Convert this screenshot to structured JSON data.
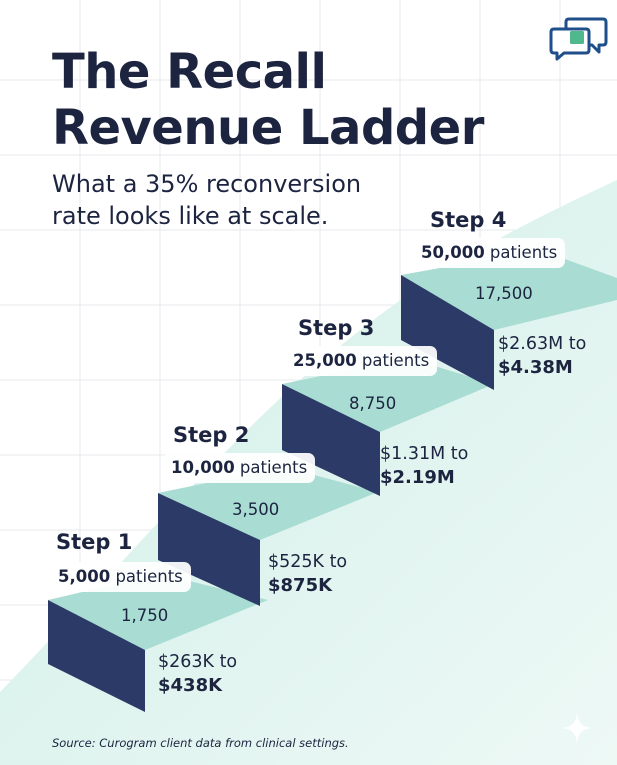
{
  "header": {
    "title_line1": "The Recall",
    "title_line2": "Revenue Ladder",
    "subtitle_line1": "What a 35% reconversion",
    "subtitle_line2": "rate looks like at scale."
  },
  "steps": [
    {
      "label": "Step 1",
      "patients_number": "5,000",
      "patients_word": "patients",
      "reconverted": "1,750",
      "revenue_low": "$263K to",
      "revenue_high": "$438K"
    },
    {
      "label": "Step 2",
      "patients_number": "10,000",
      "patients_word": "patients",
      "reconverted": "3,500",
      "revenue_low": "$525K to",
      "revenue_high": "$875K"
    },
    {
      "label": "Step 3",
      "patients_number": "25,000",
      "patients_word": "patients",
      "reconverted": "8,750",
      "revenue_low": "$1.31M to",
      "revenue_high": "$2.19M"
    },
    {
      "label": "Step 4",
      "patients_number": "50,000",
      "patients_word": "patients",
      "reconverted": "17,500",
      "revenue_low": "$2.63M to",
      "revenue_high": "$4.38M"
    }
  ],
  "footer": {
    "source": "Source: Curogram client data from clinical settings."
  },
  "icons": {
    "brand": "chat-bubbles-icon",
    "corner": "sparkle-icon"
  },
  "colors": {
    "navy": "#2b3a66",
    "tread": "#a9dcd3",
    "mint": "#d4f0ea",
    "text": "#1c2440"
  }
}
